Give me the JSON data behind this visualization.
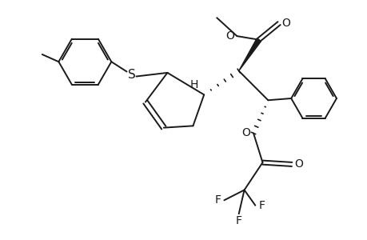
{
  "background_color": "#ffffff",
  "line_color": "#1a1a1a",
  "line_width": 1.4,
  "font_size": 10,
  "fig_width": 4.6,
  "fig_height": 3.0,
  "dpi": 100,
  "xlim": [
    0,
    10
  ],
  "ylim": [
    0,
    6.52
  ]
}
